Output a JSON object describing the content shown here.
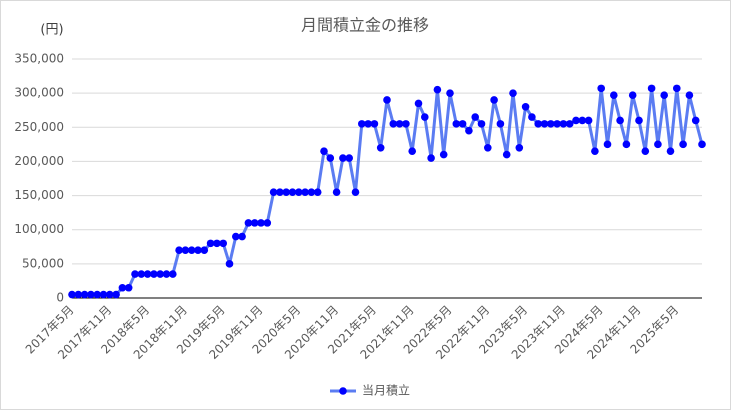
{
  "chart_data": {
    "type": "line",
    "title": "月間積立金の推移",
    "y_unit_label": "(円)",
    "categories": [
      "2017年5月",
      null,
      null,
      null,
      null,
      null,
      "2017年11月",
      null,
      null,
      null,
      null,
      null,
      "2018年5月",
      null,
      null,
      null,
      null,
      null,
      "2018年11月",
      null,
      null,
      null,
      null,
      null,
      "2019年5月",
      null,
      null,
      null,
      null,
      null,
      "2019年11月",
      null,
      null,
      null,
      null,
      null,
      "2020年5月",
      null,
      null,
      null,
      null,
      null,
      "2020年11月",
      null,
      null,
      null,
      null,
      null,
      "2021年5月",
      null,
      null,
      null,
      null,
      null,
      "2021年11月",
      null,
      null,
      null,
      null,
      null,
      "2022年5月",
      null,
      null,
      null,
      null,
      null,
      "2022年11月",
      null,
      null,
      null,
      null,
      null,
      "2023年5月",
      null,
      null,
      null,
      null,
      null,
      "2023年11月",
      null,
      null,
      null,
      null,
      null,
      "2024年5月",
      null,
      null,
      null,
      null,
      null,
      "2024年11月",
      null,
      null,
      null,
      null,
      null,
      "2025年5月",
      null,
      null,
      null,
      null
    ],
    "series": [
      {
        "name": "当月積立",
        "color": "#5b7cf2",
        "marker_color": "#0000ff",
        "values": [
          5000,
          5000,
          5000,
          5000,
          5000,
          5000,
          5000,
          5000,
          15000,
          15000,
          35000,
          35000,
          35000,
          35000,
          35000,
          35000,
          35000,
          70000,
          70000,
          70000,
          70000,
          70000,
          80000,
          80000,
          80000,
          50000,
          90000,
          90000,
          110000,
          110000,
          110000,
          110000,
          155000,
          155000,
          155000,
          155000,
          155000,
          155000,
          155000,
          155000,
          215000,
          205000,
          155000,
          205000,
          205000,
          155000,
          255000,
          255000,
          255000,
          220000,
          290000,
          255000,
          255000,
          255000,
          215000,
          285000,
          265000,
          205000,
          305000,
          210000,
          300000,
          255000,
          255000,
          245000,
          265000,
          255000,
          220000,
          290000,
          255000,
          210000,
          300000,
          220000,
          280000,
          265000,
          255000,
          255000,
          255000,
          255000,
          255000,
          255000,
          260000,
          260000,
          260000,
          215000,
          307000,
          225000,
          297000,
          260000,
          225000,
          297000,
          260000,
          215000,
          307000,
          225000,
          297000,
          215000,
          307000,
          225000,
          297000,
          260000,
          225000
        ]
      }
    ],
    "ylim": [
      0,
      350000
    ],
    "yticks": [
      0,
      {
        "value": 50000,
        "label": "50,000"
      },
      {
        "value": 100000,
        "label": "100,000"
      },
      {
        "value": 150000,
        "label": "150,000"
      },
      {
        "value": 200000,
        "label": "200,000"
      },
      {
        "value": 250000,
        "label": "250,000"
      },
      {
        "value": 300000,
        "label": "300,000"
      },
      {
        "value": 350000,
        "label": "350,000"
      }
    ],
    "grid": true,
    "legend": "bottom"
  }
}
